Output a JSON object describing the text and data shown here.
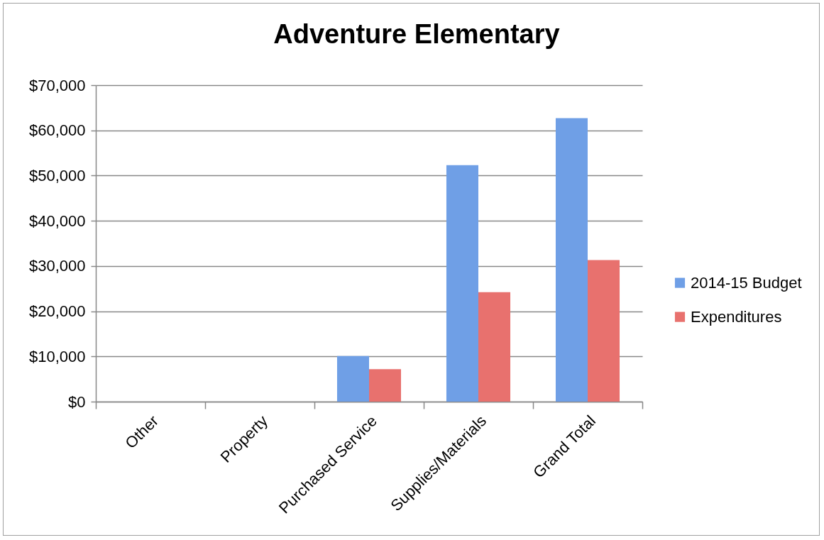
{
  "chart_data": {
    "type": "bar",
    "title": "Adventure Elementary",
    "categories": [
      "Other",
      "Property",
      "Purchased Service",
      "Supplies/Materials",
      "Grand Total"
    ],
    "series": [
      {
        "name": "2014-15 Budget",
        "color": "#6f9fe6",
        "values": [
          0,
          0,
          10100,
          52300,
          62700
        ]
      },
      {
        "name": "Expenditures",
        "color": "#e8716e",
        "values": [
          0,
          0,
          7200,
          24200,
          31300
        ]
      }
    ],
    "ylim": [
      0,
      70000
    ],
    "yticks": [
      {
        "value": 0,
        "label": "$0"
      },
      {
        "value": 10000,
        "label": "$10,000"
      },
      {
        "value": 20000,
        "label": "$20,000"
      },
      {
        "value": 30000,
        "label": "$30,000"
      },
      {
        "value": 40000,
        "label": "$40,000"
      },
      {
        "value": 50000,
        "label": "$50,000"
      },
      {
        "value": 60000,
        "label": "$60,000"
      },
      {
        "value": 70000,
        "label": "$70,000"
      }
    ],
    "grid": "y",
    "legend": "right"
  }
}
